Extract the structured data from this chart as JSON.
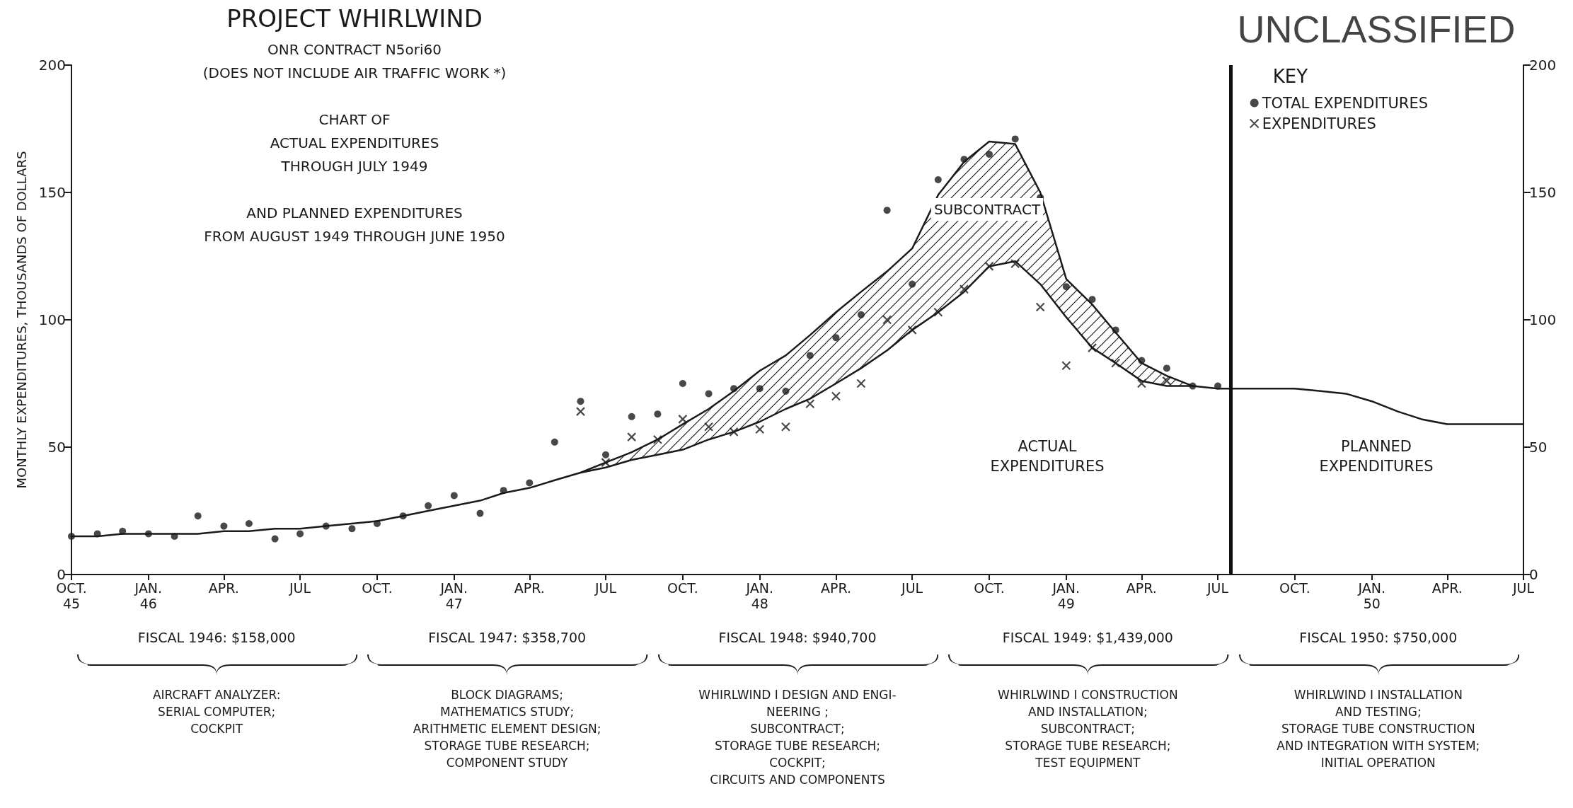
{
  "chart_data": {
    "type": "line",
    "title": "PROJECT WHIRLWIND",
    "subtitle": "ONR CONTRACT N5ori60\n(DOES NOT INCLUDE AIR TRAFFIC WORK *)\n\nCHART OF\nACTUAL EXPENDITURES\nTHROUGH JULY 1949\n\nAND PLANNED EXPENDITURES\nFROM AUGUST 1949 THROUGH JUNE 1950",
    "ylabel": "MONTHLY EXPENDITURES, THOUSANDS OF DOLLARS",
    "legend_title": "KEY",
    "legend": "top right",
    "grid": false,
    "x": [
      "1945-10",
      "1945-11",
      "1945-12",
      "1946-01",
      "1946-02",
      "1946-03",
      "1946-04",
      "1946-05",
      "1946-06",
      "1946-07",
      "1946-08",
      "1946-09",
      "1946-10",
      "1946-11",
      "1946-12",
      "1947-01",
      "1947-02",
      "1947-03",
      "1947-04",
      "1947-05",
      "1947-06",
      "1947-07",
      "1947-08",
      "1947-09",
      "1947-10",
      "1947-11",
      "1947-12",
      "1948-01",
      "1948-02",
      "1948-03",
      "1948-04",
      "1948-05",
      "1948-06",
      "1948-07",
      "1948-08",
      "1948-09",
      "1948-10",
      "1948-11",
      "1948-12",
      "1949-01",
      "1949-02",
      "1949-03",
      "1949-04",
      "1949-05",
      "1949-06",
      "1949-07",
      "1949-08",
      "1949-09",
      "1949-10",
      "1949-11",
      "1949-12",
      "1950-01",
      "1950-02",
      "1950-03",
      "1950-04",
      "1950-05",
      "1950-06",
      "1950-07"
    ],
    "series": [
      {
        "name": "TOTAL EXPENDITURES",
        "type": "scatter",
        "marker": "circle",
        "color": "#1a1a1a",
        "x": [
          "1945-10",
          "1945-11",
          "1945-12",
          "1946-01",
          "1946-02",
          "1946-03",
          "1946-04",
          "1946-05",
          "1946-06",
          "1946-07",
          "1946-08",
          "1946-09",
          "1946-10",
          "1946-11",
          "1946-12",
          "1947-01",
          "1947-02",
          "1947-03",
          "1947-04",
          "1947-05",
          "1947-06",
          "1947-07",
          "1947-08",
          "1947-09",
          "1947-10",
          "1947-11",
          "1947-12",
          "1948-01",
          "1948-02",
          "1948-03",
          "1948-04",
          "1948-05",
          "1948-06",
          "1948-07",
          "1948-08",
          "1948-09",
          "1948-10",
          "1948-11",
          "1948-12",
          "1949-01",
          "1949-02",
          "1949-03",
          "1949-04",
          "1949-05",
          "1949-06",
          "1949-07"
        ],
        "values": [
          15,
          16,
          17,
          16,
          15,
          23,
          19,
          20,
          14,
          16,
          19,
          18,
          20,
          23,
          27,
          31,
          24,
          33,
          36,
          52,
          68,
          47,
          62,
          63,
          75,
          71,
          73,
          73,
          72,
          86,
          93,
          102,
          143,
          114,
          155,
          163,
          165,
          171,
          148,
          113,
          108,
          96,
          84,
          81,
          74,
          74
        ]
      },
      {
        "name": "EXPENDITURES",
        "type": "scatter",
        "marker": "cross",
        "color": "#1a1a1a",
        "x": [
          "1947-06",
          "1947-07",
          "1947-08",
          "1947-09",
          "1947-10",
          "1947-11",
          "1947-12",
          "1948-01",
          "1948-02",
          "1948-03",
          "1948-04",
          "1948-05",
          "1948-06",
          "1948-07",
          "1948-08",
          "1948-09",
          "1948-10",
          "1948-11",
          "1948-12",
          "1949-01",
          "1949-02",
          "1949-03",
          "1949-04",
          "1949-05"
        ],
        "values": [
          64,
          44,
          54,
          53,
          61,
          58,
          56,
          57,
          58,
          67,
          70,
          75,
          100,
          96,
          103,
          112,
          121,
          122,
          105,
          82,
          89,
          83,
          75,
          76
        ]
      },
      {
        "type": "line",
        "marker": "none",
        "line_style": "solid",
        "color": "#1a1a1a",
        "values": [
          null,
          null,
          null,
          null,
          null,
          null,
          null,
          null,
          null,
          null,
          null,
          null,
          null,
          null,
          null,
          null,
          null,
          null,
          null,
          null,
          40,
          42,
          45,
          47,
          49,
          53,
          56,
          60,
          65,
          69,
          75,
          81,
          88,
          96,
          103,
          111,
          121,
          123,
          114,
          101,
          89,
          83,
          76,
          74,
          74,
          null,
          null,
          null,
          null,
          null,
          null,
          null,
          null,
          null,
          null,
          null,
          null,
          null
        ]
      },
      {
        "marker": "none",
        "line_style": "solid",
        "color": "#1a1a1a",
        "values": [
          15,
          15,
          16,
          16,
          16,
          16,
          17,
          17,
          18,
          18,
          19,
          20,
          21,
          23,
          25,
          27,
          29,
          32,
          34,
          37,
          40,
          44,
          48,
          53,
          59,
          65,
          72,
          80,
          86,
          94,
          103,
          111,
          119,
          128,
          149,
          162,
          170,
          169,
          150,
          116,
          106,
          95,
          83,
          78,
          74,
          73,
          73,
          73,
          73,
          72,
          71,
          68,
          64,
          61,
          59,
          59,
          59,
          59
        ],
        "lower": [
          null,
          null,
          null,
          null,
          null,
          null,
          null,
          null,
          null,
          null,
          null,
          null,
          null,
          null,
          null,
          null,
          null,
          null,
          null,
          null,
          null,
          42,
          45,
          47,
          49,
          53,
          56,
          60,
          65,
          69,
          75,
          81,
          88,
          96,
          103,
          111,
          121,
          123,
          114,
          101,
          89,
          83,
          76,
          74,
          74,
          null,
          null,
          null,
          null,
          null,
          null,
          null,
          null,
          null,
          null,
          null,
          null,
          null
        ],
        "upper": [
          null,
          null,
          null,
          null,
          null,
          null,
          null,
          null,
          null,
          null,
          null,
          null,
          null,
          null,
          null,
          null,
          null,
          null,
          null,
          null,
          null,
          44,
          48,
          53,
          59,
          65,
          72,
          80,
          86,
          94,
          103,
          111,
          119,
          128,
          149,
          162,
          170,
          169,
          150,
          116,
          106,
          95,
          83,
          78,
          74,
          null,
          null,
          null,
          null,
          null,
          null,
          null,
          null,
          null,
          null,
          null,
          null,
          null
        ]
      }
    ],
    "ylim": [
      0,
      200
    ],
    "yticks": [
      0,
      50,
      100,
      150,
      200
    ],
    "y2lim": [
      0,
      200
    ],
    "y2ticks": [
      0,
      50,
      100,
      150,
      200
    ],
    "xlim": [
      "1945-10",
      "1950-07"
    ],
    "xticks": [
      {
        "value": "1945-10",
        "label": "OCT.\n45"
      },
      {
        "value": "1946-01",
        "label": "JAN.\n46"
      },
      {
        "value": "1946-04",
        "label": "APR."
      },
      {
        "value": "1946-07",
        "label": "JUL"
      },
      {
        "value": "1946-10",
        "label": "OCT."
      },
      {
        "value": "1947-01",
        "label": "JAN.\n47"
      },
      {
        "value": "1947-04",
        "label": "APR."
      },
      {
        "value": "1947-07",
        "label": "JUL"
      },
      {
        "value": "1947-10",
        "label": "OCT."
      },
      {
        "value": "1948-01",
        "label": "JAN.\n48"
      },
      {
        "value": "1948-04",
        "label": "APR."
      },
      {
        "value": "1948-07",
        "label": "JUL"
      },
      {
        "value": "1948-10",
        "label": "OCT."
      },
      {
        "value": "1949-01",
        "label": "JAN.\n49"
      },
      {
        "value": "1949-04",
        "label": "APR."
      },
      {
        "value": "1949-07",
        "label": "JUL"
      },
      {
        "value": "1949-10",
        "label": "OCT."
      },
      {
        "value": "1950-01",
        "label": "JAN.\n50"
      },
      {
        "value": "1950-04",
        "label": "APR."
      },
      {
        "value": "1950-07",
        "label": "JUL"
      }
    ],
    "ref_lines": [
      {
        "axis": "x",
        "value": "1949-07-16",
        "color": "#111111"
      }
    ],
    "annotations": [
      "SUBCONTRACT",
      "ACTUAL\nEXPENDITURES",
      "PLANNED\nEXPENDITURES",
      "UNCLASSIFIED",
      "FISCAL 1946: $158,000",
      "AIRCRAFT ANALYZER:\nSERIAL COMPUTER;\nCOCKPIT",
      "FISCAL 1947: $358,700",
      "BLOCK DIAGRAMS;\nMATHEMATICS STUDY;\nARITHMETIC ELEMENT DESIGN;\nSTORAGE TUBE RESEARCH;\nCOMPONENT STUDY",
      "FISCAL 1948: $940,700",
      "WHIRLWIND I DESIGN AND ENGI-\nNEERING ;\nSUBCONTRACT;\nSTORAGE TUBE RESEARCH;\nCOCKPIT;\nCIRCUITS AND COMPONENTS",
      "FISCAL 1949: $1,439,000",
      "WHIRLWIND I CONSTRUCTION\nAND INSTALLATION;\nSUBCONTRACT;\nSTORAGE TUBE RESEARCH;\nTEST EQUIPMENT",
      "FISCAL 1950: $750,000",
      "WHIRLWIND I INSTALLATION\nAND TESTING;\nSTORAGE TUBE CONSTRUCTION\nAND INTEGRATION WITH SYSTEM;\nINITIAL OPERATION"
    ]
  }
}
